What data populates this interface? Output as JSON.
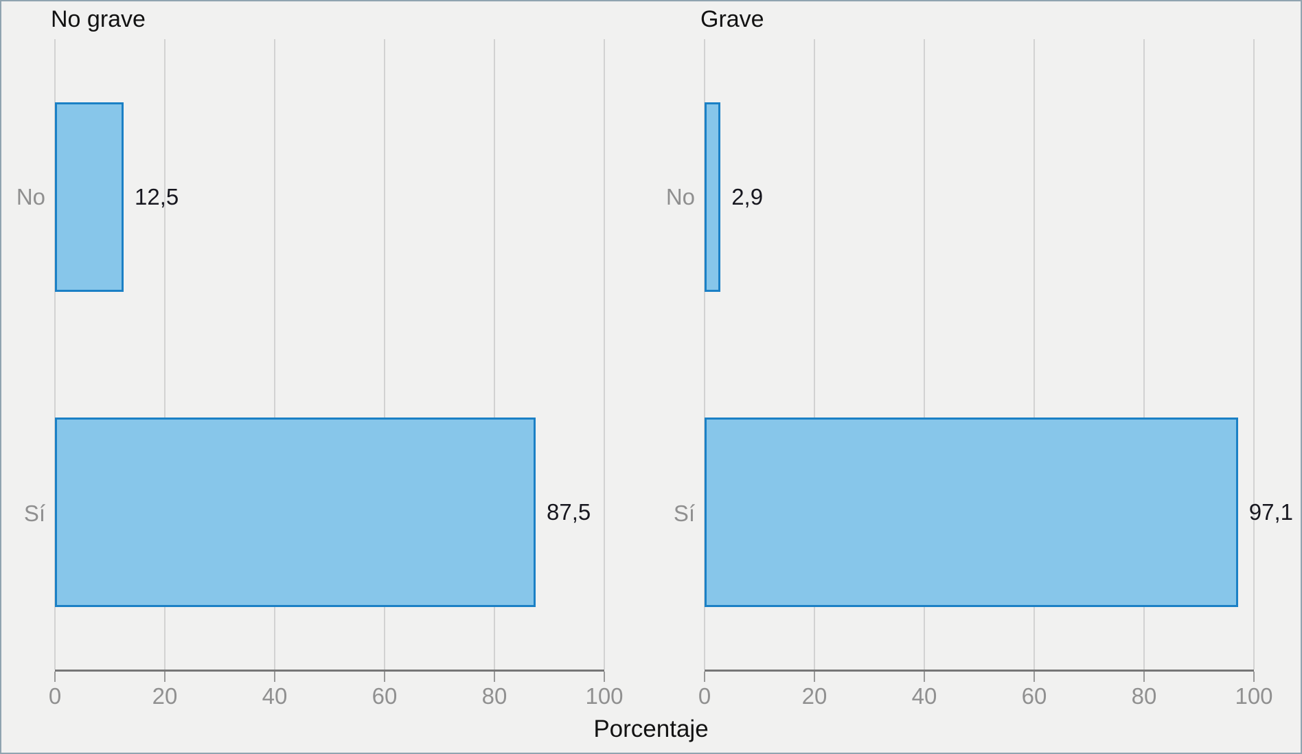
{
  "figure": {
    "background": "#f1f1f0"
  },
  "chart_data": {
    "type": "bar",
    "orientation": "horizontal",
    "title": "",
    "xlabel": "Porcentaje",
    "ylabel": "",
    "xlim": [
      0,
      100
    ],
    "xticks": [
      "0",
      "20",
      "40",
      "60",
      "80",
      "100"
    ],
    "grid": "vertical-major-only",
    "legend": "none",
    "facets": [
      {
        "title": "No grave",
        "categories": [
          "No",
          "Sí"
        ],
        "values": [
          12.5,
          87.5
        ],
        "value_labels": [
          "12,5",
          "87,5"
        ]
      },
      {
        "title": "Grave",
        "categories": [
          "No",
          "Sí"
        ],
        "values": [
          2.9,
          97.1
        ],
        "value_labels": [
          "2,9",
          "97,1"
        ]
      }
    ],
    "colors": {
      "bar_fill": "#87c6ea",
      "bar_border": "#1b80c5",
      "gridline": "#d2d2d2",
      "axis_line": "#767676",
      "tick_label": "#909090",
      "category_label": "#8f8f8f",
      "value_label": "#17171f",
      "title": "#121212"
    }
  }
}
